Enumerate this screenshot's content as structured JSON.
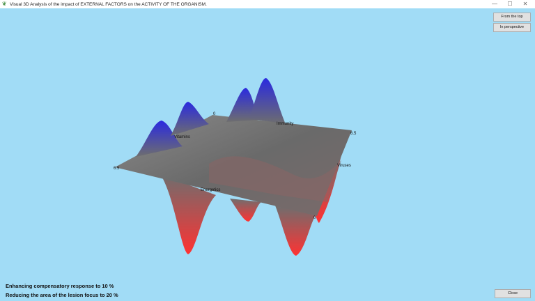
{
  "window": {
    "title": "Visual 3D Analysis of the impact of EXTERNAL FACTORS on the ACTIVITY OF THE ORGANISM.",
    "minimize": "—",
    "maximize": "☐",
    "close": "✕",
    "icon": "leaf-app-icon"
  },
  "buttons": {
    "from_top": "From the top",
    "perspective": "In perspective",
    "close": "Close"
  },
  "status": {
    "line1": "Enhancing compensatory response to 10 %",
    "line2": "Reducing the area of the lesion focus to 20 %"
  },
  "surface": {
    "axes": {
      "vitamins": "Vitamins",
      "immunity": "Immunity",
      "viruses": "Viruses",
      "energetics": "Energetics",
      "tick_max_left": "6.5",
      "tick_max_right": "6.5",
      "tick_zero_back": "0",
      "tick_zero_front": "0"
    },
    "colors": {
      "peak": "#2a2ad8",
      "flat": "#6e6e6e",
      "trough": "#ff3030",
      "background": "#a1dcf6"
    }
  }
}
